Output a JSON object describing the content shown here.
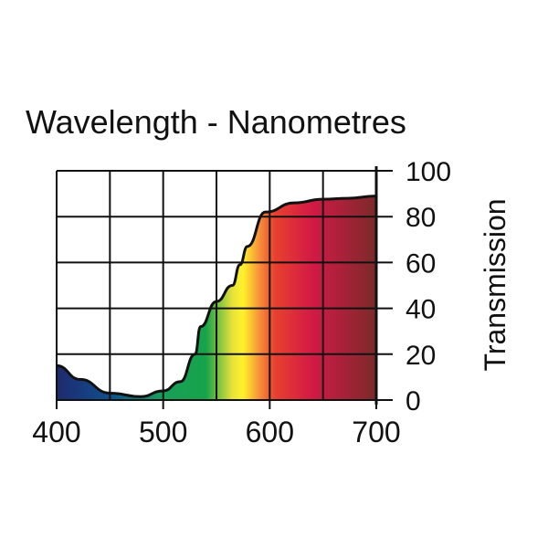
{
  "chart_data": {
    "type": "area",
    "title": "Wavelength - Nanometres",
    "xlabel": "",
    "ylabel": "Transmission",
    "xlim": [
      400,
      700
    ],
    "ylim": [
      0,
      100
    ],
    "grid": true,
    "x_ticks": [
      400,
      500,
      600,
      700
    ],
    "x_tick_labels": [
      "400",
      "500",
      "600",
      "700"
    ],
    "y_ticks": [
      0,
      20,
      40,
      60,
      80,
      100
    ],
    "y_tick_labels": [
      "0",
      "20",
      "40",
      "60",
      "80",
      "100"
    ],
    "x": [
      400,
      422,
      450,
      479,
      500,
      516,
      530,
      535,
      550,
      565,
      572,
      579,
      596,
      623,
      650,
      673,
      700
    ],
    "y": [
      15,
      9,
      3,
      1.5,
      4,
      8,
      20,
      32,
      43,
      50,
      59,
      67,
      82,
      86,
      87.6,
      88,
      89
    ],
    "fill_gradient": [
      {
        "nm": 400,
        "color": "#1f2a6e"
      },
      {
        "nm": 450,
        "color": "#0f4f8f"
      },
      {
        "nm": 500,
        "color": "#19a05a"
      },
      {
        "nm": 540,
        "color": "#16a34a"
      },
      {
        "nm": 565,
        "color": "#e8e23a"
      },
      {
        "nm": 575,
        "color": "#fff22a"
      },
      {
        "nm": 590,
        "color": "#f7913a"
      },
      {
        "nm": 605,
        "color": "#e8402f"
      },
      {
        "nm": 640,
        "color": "#d21a45"
      },
      {
        "nm": 700,
        "color": "#7a2a2a"
      }
    ]
  }
}
